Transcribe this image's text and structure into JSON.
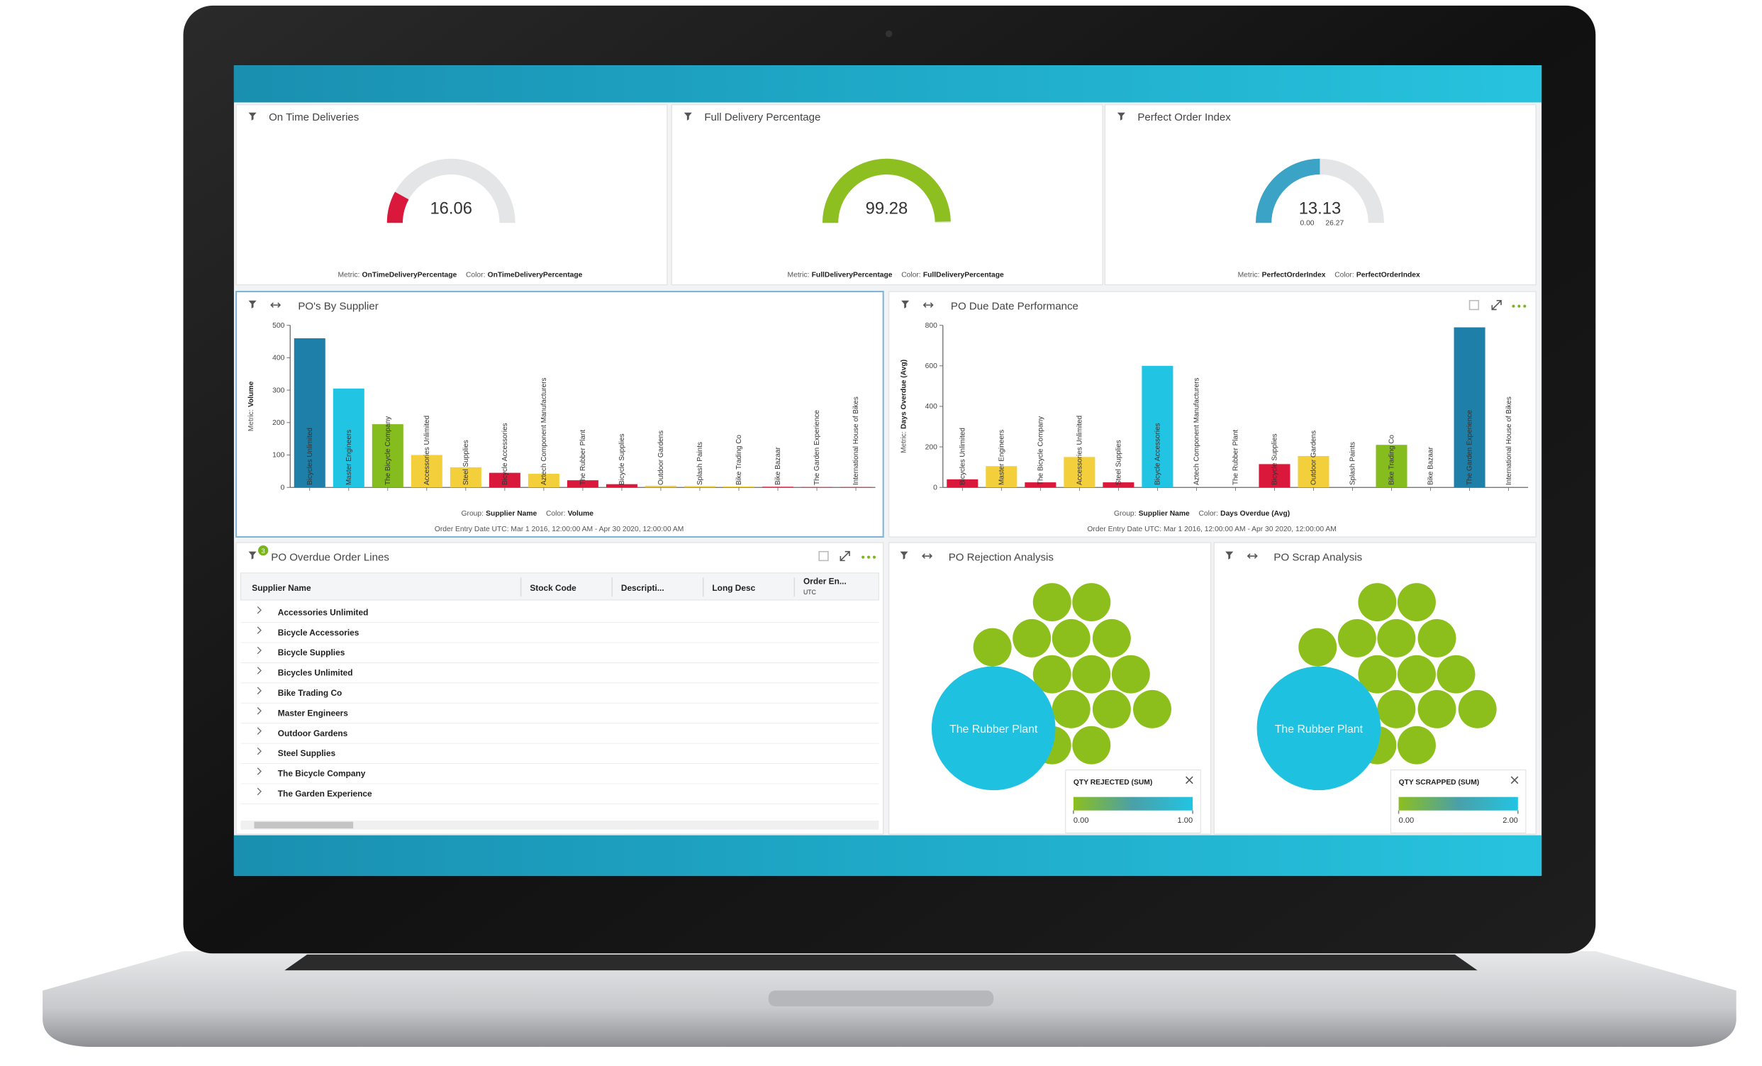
{
  "gauges": [
    {
      "title": "On Time Deliveries",
      "value": 16.06,
      "range": [
        0,
        100
      ],
      "color": "#d9183b",
      "metric_prefix": "Metric:",
      "metric": "OnTimeDeliveryPercentage",
      "color_prefix": "Color:",
      "color_field": "OnTimeDeliveryPercentage"
    },
    {
      "title": "Full Delivery Percentage",
      "value": 99.28,
      "range": [
        0,
        100
      ],
      "color": "#8cbf1f",
      "metric_prefix": "Metric:",
      "metric": "FullDeliveryPercentage",
      "color_prefix": "Color:",
      "color_field": "FullDeliveryPercentage"
    },
    {
      "title": "Perfect Order Index",
      "value": 13.13,
      "range": [
        {
          "value": 0,
          "label": "0.00"
        },
        {
          "value": 26.27,
          "label": "26.27"
        }
      ],
      "range_printed": true,
      "color": "#3aa3c6",
      "metric_prefix": "Metric:",
      "metric": "PerfectOrderIndex",
      "color_prefix": "Color:",
      "color_field": "PerfectOrderIndex"
    }
  ],
  "chart_data": [
    {
      "type": "bar",
      "title": "PO's By Supplier",
      "y_prefix": "Metric:",
      "y_label": "Volume",
      "group_prefix": "Group:",
      "group": "Supplier Name",
      "color_prefix": "Color:",
      "color_field": "Volume",
      "date_range": "Order Entry Date UTC: Mar 1 2016, 12:00:00 AM - Apr 30 2020, 12:00:00 AM",
      "categories": [
        "Bicycles Unlimited",
        "Master Engineers",
        "The Bicycle Company",
        "Accessories Unlimited",
        "Steel Supplies",
        "Bicycle Accessories",
        "Aztech Component Manufacturers",
        "The Rubber Plant",
        "Bicycle Supplies",
        "Outdoor Gardens",
        "Splash Paints",
        "Bike Trading Co",
        "Bike Bazaar",
        "The Garden Experience",
        "International House of Bikes"
      ],
      "values": [
        460,
        305,
        195,
        100,
        62,
        45,
        42,
        22,
        10,
        5,
        4,
        3,
        2,
        1,
        1
      ],
      "colors": [
        "#1e7fa8",
        "#21c4e3",
        "#86bd1e",
        "#f2cf3b",
        "#f2cf3b",
        "#d9183b",
        "#f2cf3b",
        "#d9183b",
        "#d9183b",
        "#f2cf3b",
        "#f2cf3b",
        "#f2cf3b",
        "#d9183b",
        "#d9183b",
        "#d9183b"
      ],
      "ylim": [
        0,
        500
      ],
      "yticks": [
        0,
        100,
        200,
        300,
        400,
        500
      ]
    },
    {
      "type": "bar",
      "title": "PO Due Date Performance",
      "y_prefix": "Metric:",
      "y_label": "Days Overdue (Avg)",
      "group_prefix": "Group:",
      "group": "Supplier Name",
      "color_prefix": "Color:",
      "color_field": "Days Overdue (Avg)",
      "date_range": "Order Entry Date UTC: Mar 1 2016, 12:00:00 AM - Apr 30 2020, 12:00:00 AM",
      "categories": [
        "Bicycles Unlimited",
        "Master Engineers",
        "The Bicycle Company",
        "Accessories Unlimited",
        "Steel Supplies",
        "Bicycle Accessories",
        "Aztech Component Manufacturers",
        "The Rubber Plant",
        "Bicycle Supplies",
        "Outdoor Gardens",
        "Splash Paints",
        "Bike Trading Co",
        "Bike Bazaar",
        "The Garden Experience",
        "International House of Bikes"
      ],
      "values": [
        40,
        105,
        25,
        150,
        25,
        600,
        0,
        0,
        115,
        155,
        0,
        210,
        0,
        790,
        0
      ],
      "colors": [
        "#d9183b",
        "#f2cf3b",
        "#d9183b",
        "#f2cf3b",
        "#d9183b",
        "#21c4e3",
        "#d9183b",
        "#d9183b",
        "#d9183b",
        "#f2cf3b",
        "#d9183b",
        "#86bd1e",
        "#d9183b",
        "#1e7fa8",
        "#d9183b"
      ],
      "ylim": [
        0,
        800
      ],
      "yticks": [
        0,
        200,
        400,
        600,
        800
      ]
    }
  ],
  "table": {
    "title": "PO Overdue Order Lines",
    "badge": "3",
    "columns": [
      "Supplier Name",
      "Stock Code",
      "Descripti...",
      "Long Desc",
      "Order En..."
    ],
    "column_note": "UTC",
    "rows": [
      "Accessories Unlimited",
      "Bicycle Accessories",
      "Bicycle Supplies",
      "Bicycles Unlimited",
      "Bike Trading Co",
      "Master Engineers",
      "Outdoor Gardens",
      "Steel Supplies",
      "The Bicycle Company",
      "The Garden Experience"
    ]
  },
  "bubble_panels": [
    {
      "title": "PO Rejection Analysis",
      "bubble_label": "The Rubber Plant",
      "legend_title": "QTY REJECTED (SUM)",
      "legend_min": {
        "value": 0,
        "label": "0.00"
      },
      "legend_max": {
        "value": 1,
        "label": "1.00"
      }
    },
    {
      "title": "PO Scrap Analysis",
      "bubble_label": "The Rubber Plant",
      "legend_title": "QTY SCRAPPED (SUM)",
      "legend_min": {
        "value": 0,
        "label": "0.00"
      },
      "legend_max": {
        "value": 2,
        "label": "2.00"
      }
    }
  ]
}
